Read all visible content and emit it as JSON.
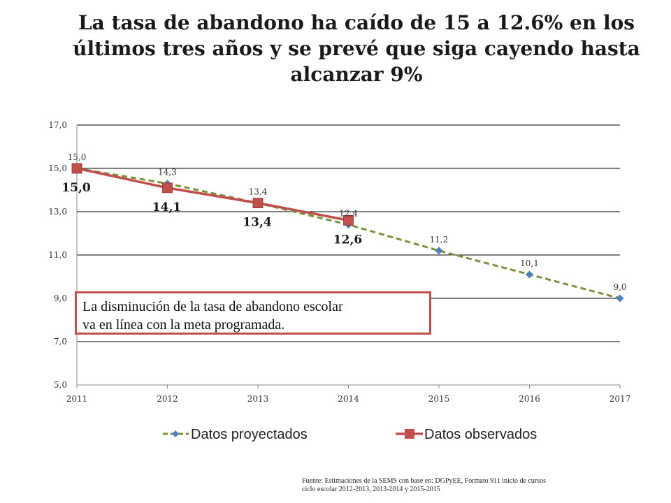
{
  "title_lines": [
    "La tasa de abandono ha caído de 15 a 12.6% en los",
    "últimos tres años y se prevé que siga cayendo hasta",
    "alcanzar 9%"
  ],
  "callout_lines": [
    "La disminución de la tasa de abandono escolar",
    "va en línea con la meta programada."
  ],
  "source_lines": [
    "Fuente: Estimaciones de la SEMS con base en: DGPyEE, Formato 911 inicio de cursos",
    "ciclo escolar 2012-2013, 2013-2014 y 2015-2015"
  ],
  "colors": {
    "projected": "#77933c",
    "projected_marker": "#4f81bd",
    "observed": "#c0504d",
    "grid": "#000000"
  },
  "chart_data": {
    "type": "line",
    "x": [
      "2011",
      "2012",
      "2013",
      "2014",
      "2015",
      "2016",
      "2017"
    ],
    "ylim": [
      5,
      17
    ],
    "yticks": [
      "5,0",
      "7,0",
      "9,0",
      "11,0",
      "13,0",
      "15,0",
      "17,0"
    ],
    "grid": true,
    "legend_position": "bottom",
    "series": [
      {
        "name": "Datos proyectados",
        "style": "dashed",
        "marker": "diamond",
        "x": [
          "2011",
          "2012",
          "2013",
          "2014",
          "2015",
          "2016",
          "2017"
        ],
        "values": [
          15.0,
          14.3,
          13.4,
          12.4,
          11.2,
          10.1,
          9.0
        ],
        "labels": [
          "15,0",
          "14,3",
          "13,4",
          "12,4",
          "11,2",
          "10,1",
          "9,0"
        ]
      },
      {
        "name": "Datos observados",
        "style": "solid",
        "marker": "square",
        "x": [
          "2011",
          "2012",
          "2013",
          "2014"
        ],
        "values": [
          15.0,
          14.1,
          13.4,
          12.6
        ],
        "labels": [
          "15,0",
          "14,1",
          "13,4",
          "12,6"
        ]
      }
    ]
  }
}
